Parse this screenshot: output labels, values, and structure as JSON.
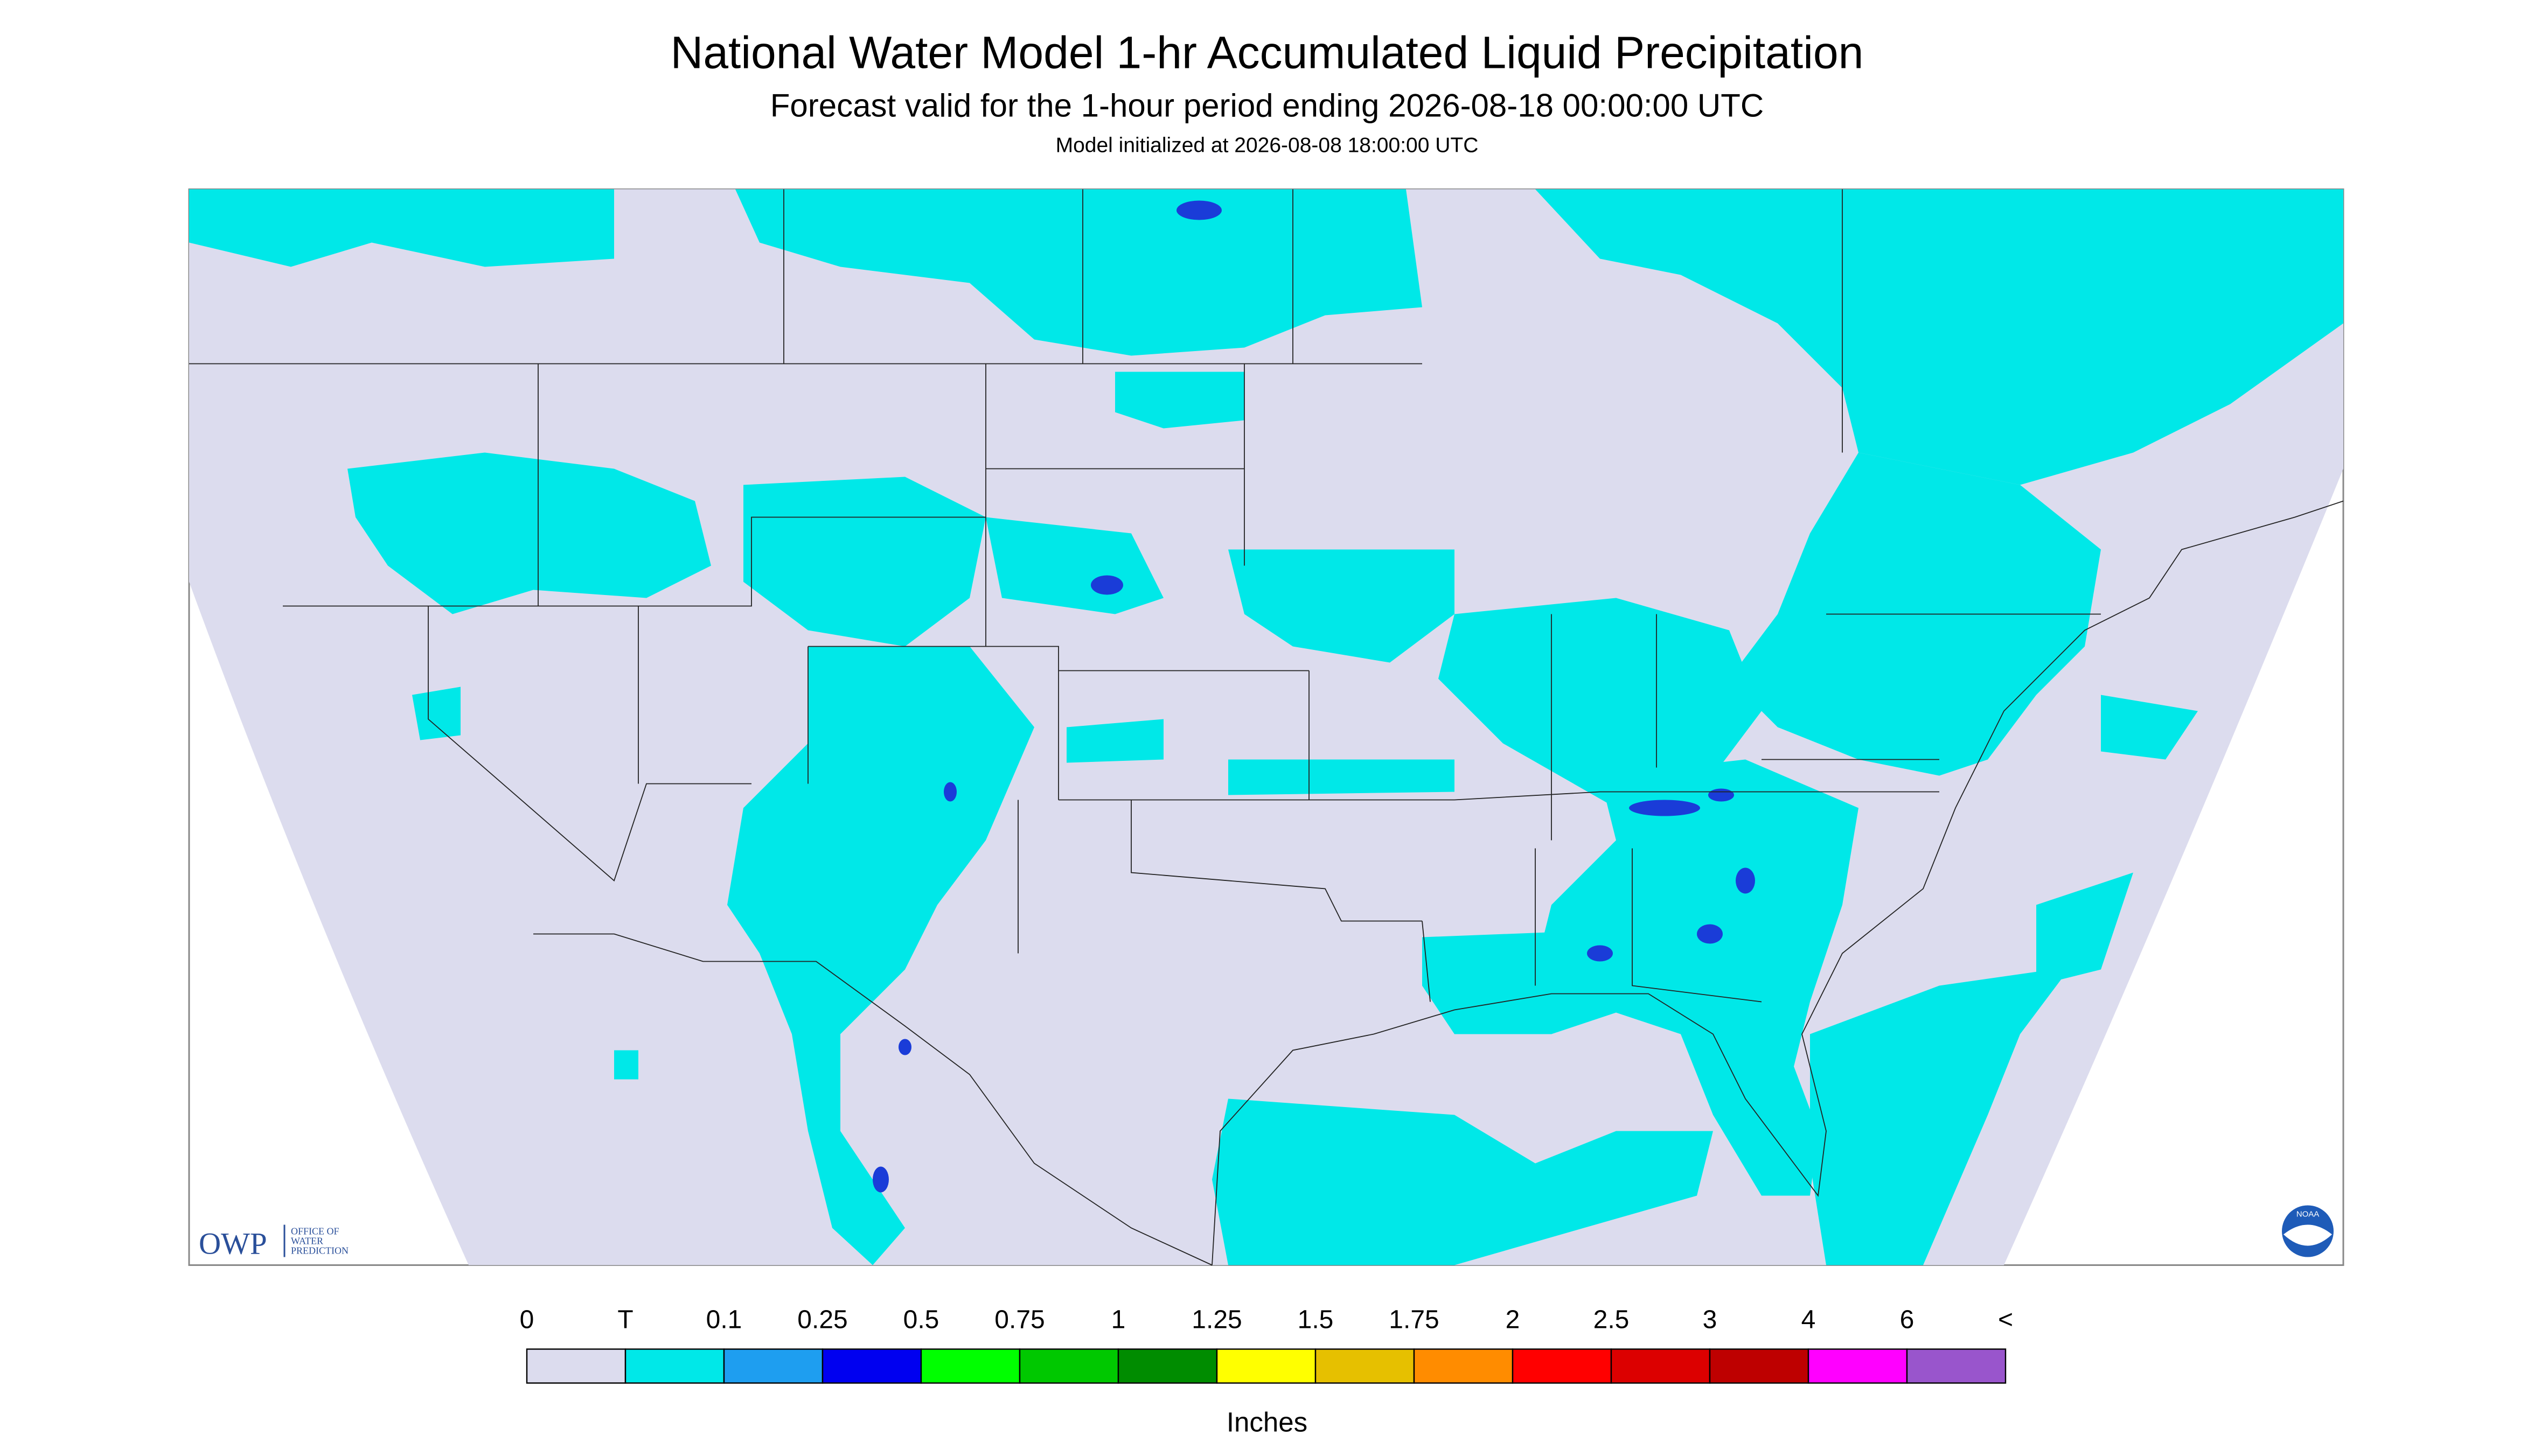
{
  "header": {
    "title": "National Water Model 1-hr Accumulated Liquid Precipitation",
    "subtitle": "Forecast valid for the 1-hour period ending 2026-08-18 00:00:00 UTC",
    "init": "Model initialized at 2026-08-08 18:00:00 UTC"
  },
  "legend": {
    "labels": [
      "0",
      "T",
      "0.1",
      "0.25",
      "0.5",
      "0.75",
      "1",
      "1.25",
      "1.5",
      "1.75",
      "2",
      "2.5",
      "3",
      "4",
      "6",
      "<"
    ],
    "colors": [
      "#dcdcee",
      "#00e8e8",
      "#1e9ef0",
      "#0000f0",
      "#00ff00",
      "#00c800",
      "#008c00",
      "#ffff00",
      "#e6c000",
      "#ff8c00",
      "#ff0000",
      "#dc0000",
      "#be0000",
      "#ff00ff",
      "#9955cc"
    ],
    "units": "Inches"
  },
  "logos": {
    "owp": "OWP",
    "owp_text": [
      "OFFICE OF",
      "WATER",
      "PREDICTION"
    ],
    "noaa": "NOAA"
  }
}
